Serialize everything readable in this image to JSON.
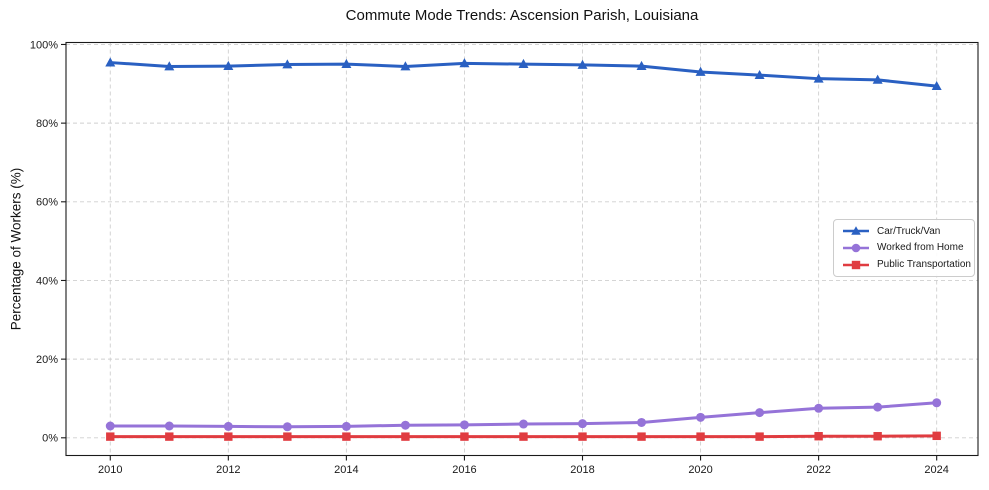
{
  "chart_data": {
    "type": "line",
    "title": "Commute Mode Trends: Ascension Parish, Louisiana",
    "xlabel": "",
    "ylabel": "Percentage of Workers (%)",
    "x": [
      2010,
      2011,
      2012,
      2013,
      2014,
      2015,
      2016,
      2017,
      2018,
      2019,
      2020,
      2021,
      2022,
      2023,
      2024
    ],
    "series": [
      {
        "name": "Car/Truck/Van",
        "color": "#2a60c2",
        "marker": "triangle",
        "values": [
          95.4,
          94.4,
          94.5,
          94.9,
          95.0,
          94.4,
          95.2,
          95.0,
          94.8,
          94.5,
          93.0,
          92.2,
          91.3,
          91.0,
          89.4
        ]
      },
      {
        "name": "Worked from Home",
        "color": "#9573d8",
        "marker": "circle",
        "values": [
          3.0,
          3.0,
          2.9,
          2.8,
          2.9,
          3.2,
          3.3,
          3.5,
          3.6,
          3.9,
          5.2,
          6.4,
          7.5,
          7.8,
          8.9
        ]
      },
      {
        "name": "Public Transportation",
        "color": "#e03c40",
        "marker": "square",
        "values": [
          0.3,
          0.3,
          0.3,
          0.3,
          0.3,
          0.3,
          0.3,
          0.3,
          0.3,
          0.3,
          0.3,
          0.3,
          0.4,
          0.4,
          0.5
        ]
      }
    ],
    "xticks": [
      2010,
      2012,
      2014,
      2016,
      2018,
      2020,
      2022,
      2024
    ],
    "xtick_labels": [
      "2010",
      "2012",
      "2014",
      "2016",
      "2018",
      "2020",
      "2022",
      "2024"
    ],
    "yticks": [
      0,
      20,
      40,
      60,
      80,
      100
    ],
    "ytick_labels": [
      "0%",
      "20%",
      "40%",
      "60%",
      "80%",
      "100%"
    ],
    "ylim": [
      -4.5,
      100.5
    ],
    "xlim": [
      2009.25,
      2024.7
    ],
    "grid": true,
    "legend_position": "center right"
  },
  "colors": {
    "grid": "#cfcfcf",
    "spine": "#1a1a1a",
    "tick_text": "#1a1a1a",
    "background": "#ffffff"
  }
}
